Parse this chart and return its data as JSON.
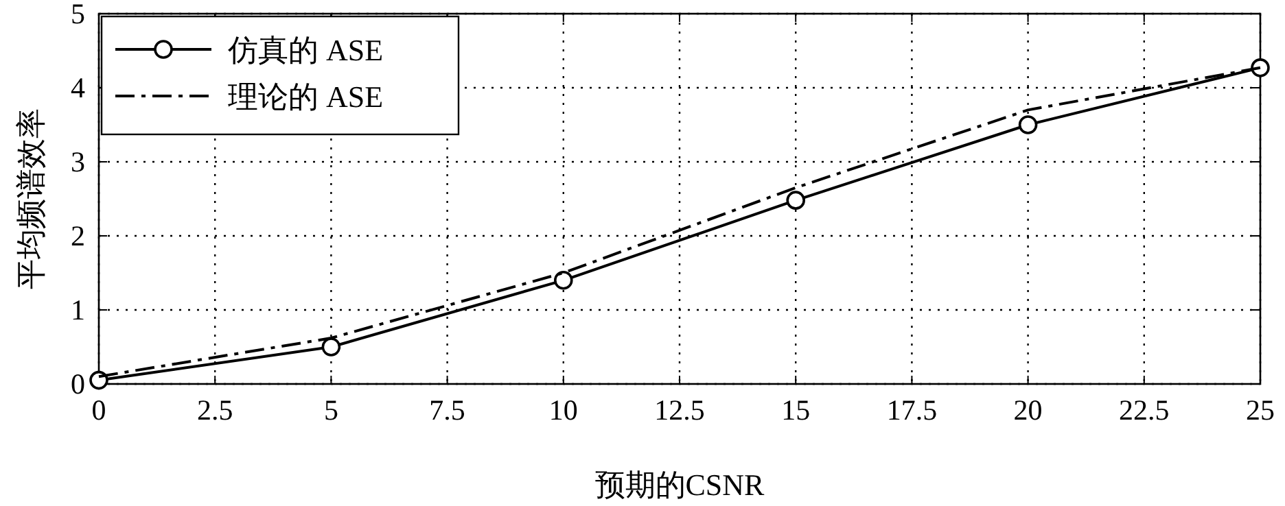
{
  "chart_data": {
    "type": "line",
    "xlabel": "预期的CSNR",
    "ylabel": "平均频谱效率",
    "x": [
      0,
      5,
      10,
      15,
      20,
      25
    ],
    "series": [
      {
        "name": "仿真的 ASE",
        "color": "#000000",
        "values": [
          0.05,
          0.5,
          1.4,
          2.48,
          3.5,
          4.27
        ],
        "marker": "circle",
        "line_style": "solid"
      },
      {
        "name": "理论的 ASE",
        "color": "#000000",
        "values": [
          0.1,
          0.62,
          1.5,
          2.65,
          3.7,
          4.27
        ],
        "marker": "none",
        "line_style": "dashdot"
      }
    ],
    "xlim": [
      0,
      25
    ],
    "ylim": [
      0,
      5
    ],
    "xticks": [
      0,
      2.5,
      5,
      7.5,
      10,
      12.5,
      15,
      17.5,
      20,
      22.5,
      25
    ],
    "yticks": [
      0,
      1,
      2,
      3,
      4,
      5
    ],
    "grid": true,
    "legend": "top left"
  }
}
